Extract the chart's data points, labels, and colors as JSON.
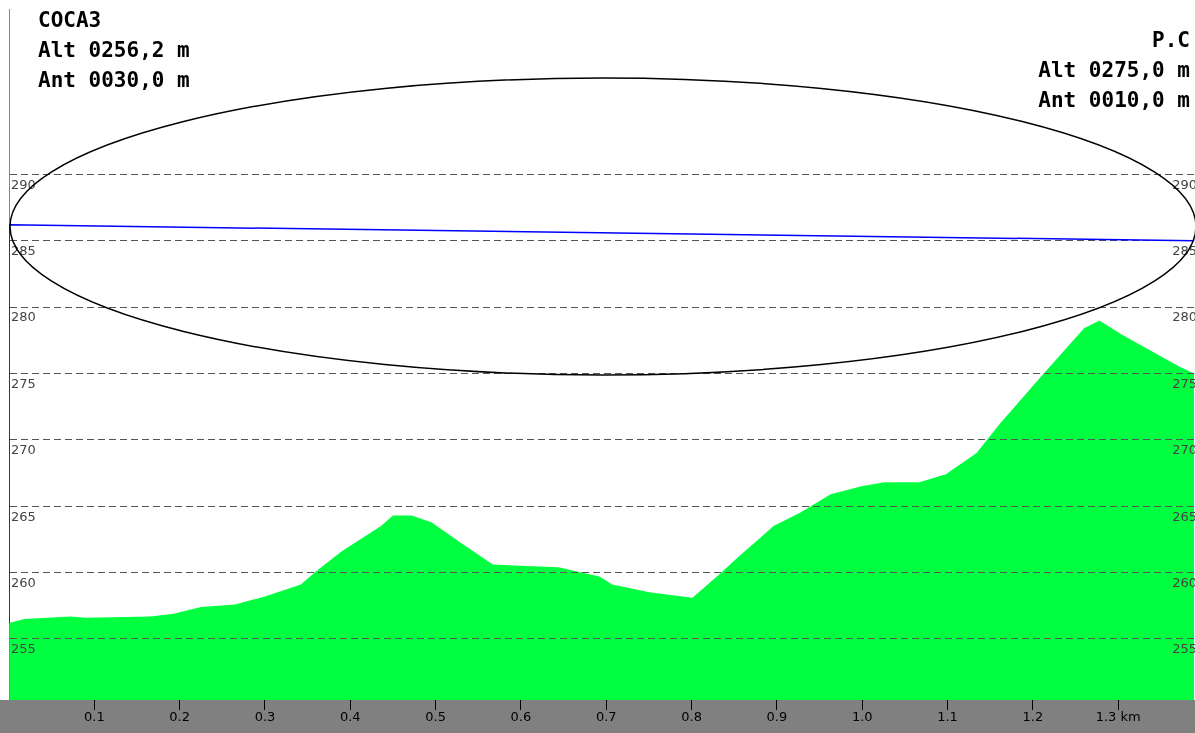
{
  "chart_data": {
    "type": "area",
    "annotations": [
      "COCA3",
      "Alt 0256,2 m",
      "Ant 0030,0 m",
      "P.C",
      "Alt 0275,0 m",
      "Ant 0010,0 m"
    ],
    "series": [
      {
        "color": "#00ff40",
        "x": [
          0,
          0.018,
          0.072,
          0.09,
          0.166,
          0.193,
          0.225,
          0.265,
          0.3,
          0.342,
          0.36,
          0.39,
          0.436,
          0.45,
          0.472,
          0.495,
          0.526,
          0.567,
          0.644,
          0.692,
          0.707,
          0.752,
          0.801,
          0.833,
          0.855,
          0.896,
          0.927,
          0.963,
          0.999,
          1.026,
          1.067,
          1.098,
          1.134,
          1.161,
          1.206,
          1.26,
          1.278,
          1.305,
          1.372,
          1.389
        ],
        "values": [
          256.2,
          256.5,
          256.7,
          256.6,
          256.7,
          256.9,
          257.4,
          257.6,
          258.2,
          259.1,
          260.1,
          261.6,
          263.5,
          264.3,
          264.3,
          263.8,
          262.4,
          260.6,
          260.4,
          259.7,
          259.1,
          258.5,
          258.1,
          259.9,
          261.2,
          263.5,
          264.5,
          265.9,
          266.5,
          266.8,
          266.8,
          267.4,
          269,
          271.2,
          274.5,
          278.4,
          279,
          277.9,
          275.5,
          275
        ]
      },
      {
        "type": "line",
        "color": "#0000ff",
        "x": [
          0,
          0,
          1.389
        ],
        "values": [
          256.2,
          286.2,
          285
        ]
      }
    ],
    "xlim": [
      0,
      1.39
    ],
    "xticks": [
      0.1,
      0.2,
      0.3,
      0.4,
      0.5,
      0.6,
      0.7,
      0.8,
      0.9,
      "1.0",
      1.1,
      1.2,
      {
        "value": 1.3,
        "label": "1.3 km"
      }
    ],
    "ylim": [
      250.4,
      302.4
    ],
    "yticks": [
      255,
      260,
      265,
      270,
      275,
      280,
      285,
      290
    ],
    "y2lim": [
      250.4,
      302.4
    ],
    "y2ticks": [
      255,
      260,
      265,
      270,
      275,
      280,
      285,
      290
    ],
    "grid": "y",
    "legend": false,
    "marker": "none"
  }
}
